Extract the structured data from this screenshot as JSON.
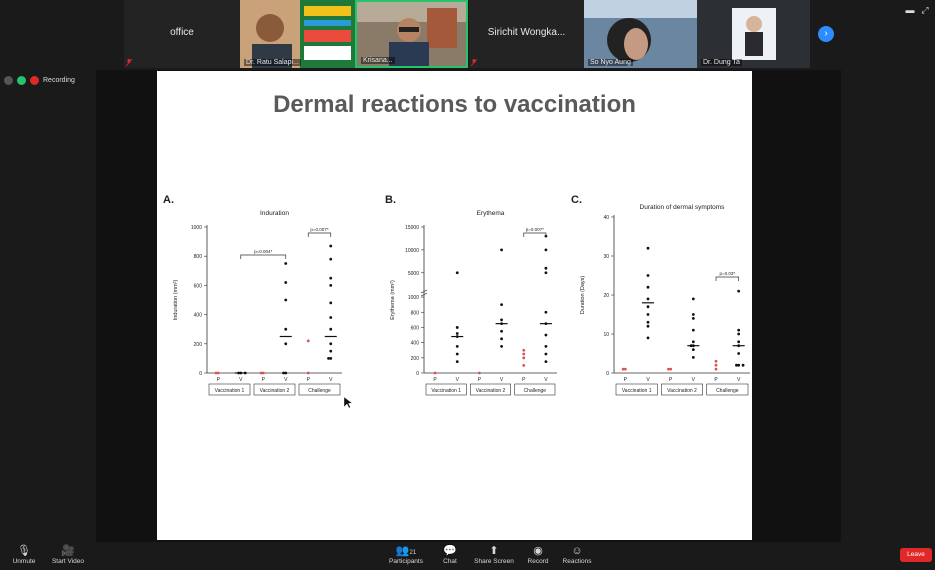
{
  "participants": [
    {
      "name": "office",
      "caption": ""
    },
    {
      "name": "",
      "caption": "Dr. Ratu Salapi..."
    },
    {
      "name": "",
      "caption": "Krisana..."
    },
    {
      "name": "Sirichit  Wongka...",
      "caption": ""
    },
    {
      "name": "",
      "caption": "So Nyo Aung"
    },
    {
      "name": "",
      "caption": "Dr. Dung Ta"
    }
  ],
  "recording": {
    "label": "Recording"
  },
  "slide": {
    "title": "Dermal reactions to vaccination",
    "panels": [
      {
        "letter": "A.",
        "title": "Induration",
        "ylabel": "Induration (mm²)",
        "yticks": [
          "0",
          "200",
          "400",
          "600",
          "800",
          "1000"
        ],
        "pvalues": [
          "p=0.004*",
          "p=0.007*"
        ],
        "groups": [
          "Vaccination 1",
          "Vaccination 2",
          "Challenge"
        ],
        "pv": [
          "P",
          "V"
        ]
      },
      {
        "letter": "B.",
        "title": "Erythema",
        "ylabel": "Erythema (mm²)",
        "yticks": [
          "0",
          "200",
          "400",
          "600",
          "800",
          "1000",
          "5000",
          "10000",
          "15000"
        ],
        "pvalues": [
          "p=0.007*"
        ],
        "groups": [
          "Vaccination 1",
          "Vaccination 2",
          "Challenge"
        ],
        "pv": [
          "P",
          "V"
        ]
      },
      {
        "letter": "C.",
        "title": "Duration of dermal symptoms",
        "ylabel": "Duration (Days)",
        "yticks": [
          "0",
          "10",
          "20",
          "30",
          "40"
        ],
        "pvalues": [
          "p=0.03*"
        ],
        "groups": [
          "Vaccination 1",
          "Vaccination 2",
          "Challenge"
        ],
        "pv": [
          "P",
          "V"
        ]
      }
    ]
  },
  "chart_data": [
    {
      "type": "scatter",
      "title": "Induration",
      "ylabel": "Induration (mm²)",
      "ylim": [
        0,
        1000
      ],
      "categories": [
        "Vaccination 1 P",
        "Vaccination 1 V",
        "Vaccination 2 P",
        "Vaccination 2 V",
        "Challenge P",
        "Challenge V"
      ],
      "series": [
        {
          "name": "P",
          "color": "#e05050",
          "points": [
            [
              0,
              0
            ],
            [
              0,
              0
            ],
            [
              2,
              0
            ],
            [
              2,
              0
            ],
            [
              4,
              220
            ],
            [
              4,
              0
            ]
          ]
        },
        {
          "name": "V",
          "color": "#111111",
          "points": [
            [
              1,
              0
            ],
            [
              1,
              0
            ],
            [
              1,
              0
            ],
            [
              3,
              750
            ],
            [
              3,
              620
            ],
            [
              3,
              500
            ],
            [
              3,
              300
            ],
            [
              3,
              200
            ],
            [
              3,
              0
            ],
            [
              3,
              0
            ],
            [
              5,
              870
            ],
            [
              5,
              780
            ],
            [
              5,
              650
            ],
            [
              5,
              600
            ],
            [
              5,
              480
            ],
            [
              5,
              380
            ],
            [
              5,
              300
            ],
            [
              5,
              200
            ],
            [
              5,
              150
            ],
            [
              5,
              100
            ],
            [
              5,
              100
            ]
          ]
        }
      ],
      "medians": [
        [
          1,
          0
        ],
        [
          3,
          250
        ],
        [
          5,
          250
        ]
      ]
    },
    {
      "type": "scatter",
      "title": "Erythema",
      "ylabel": "Erythema (mm²)",
      "categories": [
        "Vaccination 1 P",
        "Vaccination 1 V",
        "Vaccination 2 P",
        "Vaccination 2 V",
        "Challenge P",
        "Challenge V"
      ],
      "series": [
        {
          "name": "P",
          "color": "#e05050",
          "points": [
            [
              0,
              0
            ],
            [
              2,
              0
            ],
            [
              4,
              300
            ],
            [
              4,
              250
            ],
            [
              4,
              200
            ],
            [
              4,
              100
            ]
          ]
        },
        {
          "name": "V",
          "color": "#111111",
          "points": [
            [
              1,
              5000
            ],
            [
              1,
              600
            ],
            [
              1,
              520
            ],
            [
              1,
              480
            ],
            [
              1,
              350
            ],
            [
              1,
              250
            ],
            [
              1,
              150
            ],
            [
              3,
              10000
            ],
            [
              3,
              900
            ],
            [
              3,
              700
            ],
            [
              3,
              650
            ],
            [
              3,
              550
            ],
            [
              3,
              450
            ],
            [
              3,
              350
            ],
            [
              5,
              13000
            ],
            [
              5,
              10000
            ],
            [
              5,
              6000
            ],
            [
              5,
              5000
            ],
            [
              5,
              800
            ],
            [
              5,
              650
            ],
            [
              5,
              500
            ],
            [
              5,
              350
            ],
            [
              5,
              250
            ],
            [
              5,
              150
            ]
          ]
        }
      ],
      "medians": [
        [
          1,
          480
        ],
        [
          3,
          650
        ],
        [
          5,
          650
        ]
      ]
    },
    {
      "type": "scatter",
      "title": "Duration of dermal symptoms",
      "ylabel": "Duration (Days)",
      "ylim": [
        0,
        40
      ],
      "categories": [
        "Vaccination 1 P",
        "Vaccination 1 V",
        "Vaccination 2 P",
        "Vaccination 2 V",
        "Challenge P",
        "Challenge V"
      ],
      "series": [
        {
          "name": "P",
          "color": "#e05050",
          "points": [
            [
              0,
              1
            ],
            [
              0,
              1
            ],
            [
              2,
              1
            ],
            [
              2,
              1
            ],
            [
              4,
              2
            ],
            [
              4,
              3
            ],
            [
              4,
              1
            ]
          ]
        },
        {
          "name": "V",
          "color": "#111111",
          "points": [
            [
              1,
              32
            ],
            [
              1,
              25
            ],
            [
              1,
              22
            ],
            [
              1,
              19
            ],
            [
              1,
              17
            ],
            [
              1,
              15
            ],
            [
              1,
              13
            ],
            [
              1,
              12
            ],
            [
              1,
              9
            ],
            [
              3,
              19
            ],
            [
              3,
              15
            ],
            [
              3,
              14
            ],
            [
              3,
              11
            ],
            [
              3,
              8
            ],
            [
              3,
              7
            ],
            [
              3,
              7
            ],
            [
              3,
              6
            ],
            [
              3,
              4
            ],
            [
              5,
              21
            ],
            [
              5,
              11
            ],
            [
              5,
              10
            ],
            [
              5,
              8
            ],
            [
              5,
              7
            ],
            [
              5,
              5
            ],
            [
              5,
              2
            ],
            [
              5,
              2
            ],
            [
              5,
              2
            ]
          ]
        }
      ],
      "medians": [
        [
          1,
          18
        ],
        [
          3,
          7
        ],
        [
          5,
          7
        ]
      ]
    }
  ],
  "toolbar": {
    "unmute": "Unmute",
    "start_video": "Start Video",
    "participants": "Participants",
    "participants_count": "21",
    "chat": "Chat",
    "share_screen": "Share Screen",
    "record": "Record",
    "reactions": "Reactions",
    "leave": "Leave"
  }
}
